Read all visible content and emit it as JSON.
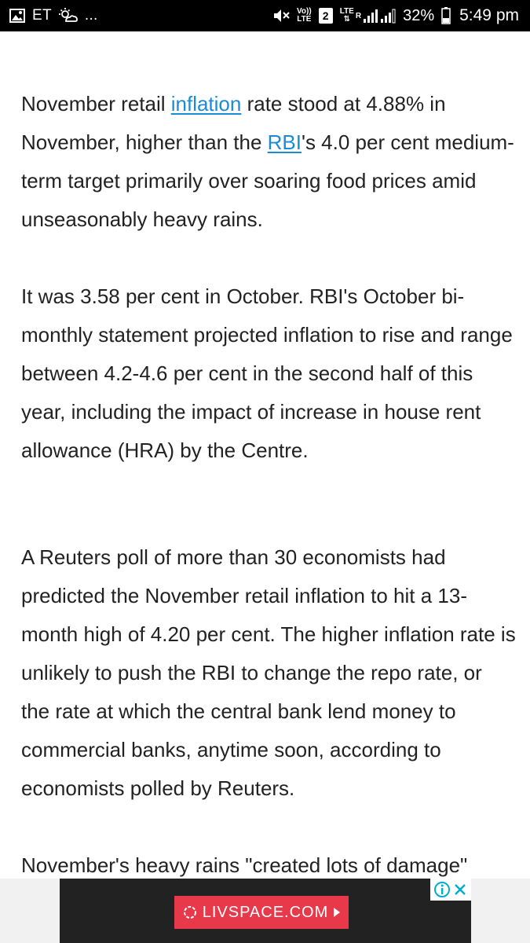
{
  "status_bar": {
    "left_label": "ET",
    "extra_indicator": "...",
    "volte_line1": "Vo))",
    "volte_line2": "LTE",
    "sim_slot": "2",
    "lte_top": "LTE",
    "roaming": "R",
    "battery_percent": "32%",
    "time": "5:49 pm",
    "icons": [
      "image-icon",
      "weather-icon",
      "mute-icon",
      "signal-icon",
      "battery-icon"
    ]
  },
  "article": {
    "paragraph1": {
      "part1": "November retail ",
      "link1": "inflation",
      "part2": " rate stood at 4.88% in November, higher than the ",
      "link2": "RBI",
      "part3": "'s 4.0 per cent medium-term target primarily over soaring food prices amid unseasonably heavy rains."
    },
    "paragraph2": "It was 3.58 per cent in October. RBI's October bi-monthly statement projected inflation to rise and range between 4.2-4.6 per cent in the second half of this year, including the impact of increase in house rent allowance (HRA) by the Centre.",
    "paragraph3": "A Reuters poll of more than 30 economists had predicted the November retail inflation to hit a 13-month high of 4.20 per cent. The higher inflation rate is unlikely to push the RBI to change the repo rate, or the rate at which the central bank lend money to commercial banks, anytime soon, according to economists polled by Reuters.",
    "paragraph4": "November's heavy rains \"created lots of damage\""
  },
  "ad": {
    "cta_label": "LIVSPACE.COM",
    "colors": {
      "banner": "#222222",
      "cta": "#e8394a",
      "controls": "#00aecd"
    },
    "icons": [
      "livspace-logo-icon",
      "play-arrow-icon",
      "adchoices-info-icon",
      "close-icon"
    ]
  },
  "colors": {
    "link": "#1a8bd6",
    "text": "#222222",
    "status_bar": "#000000"
  }
}
